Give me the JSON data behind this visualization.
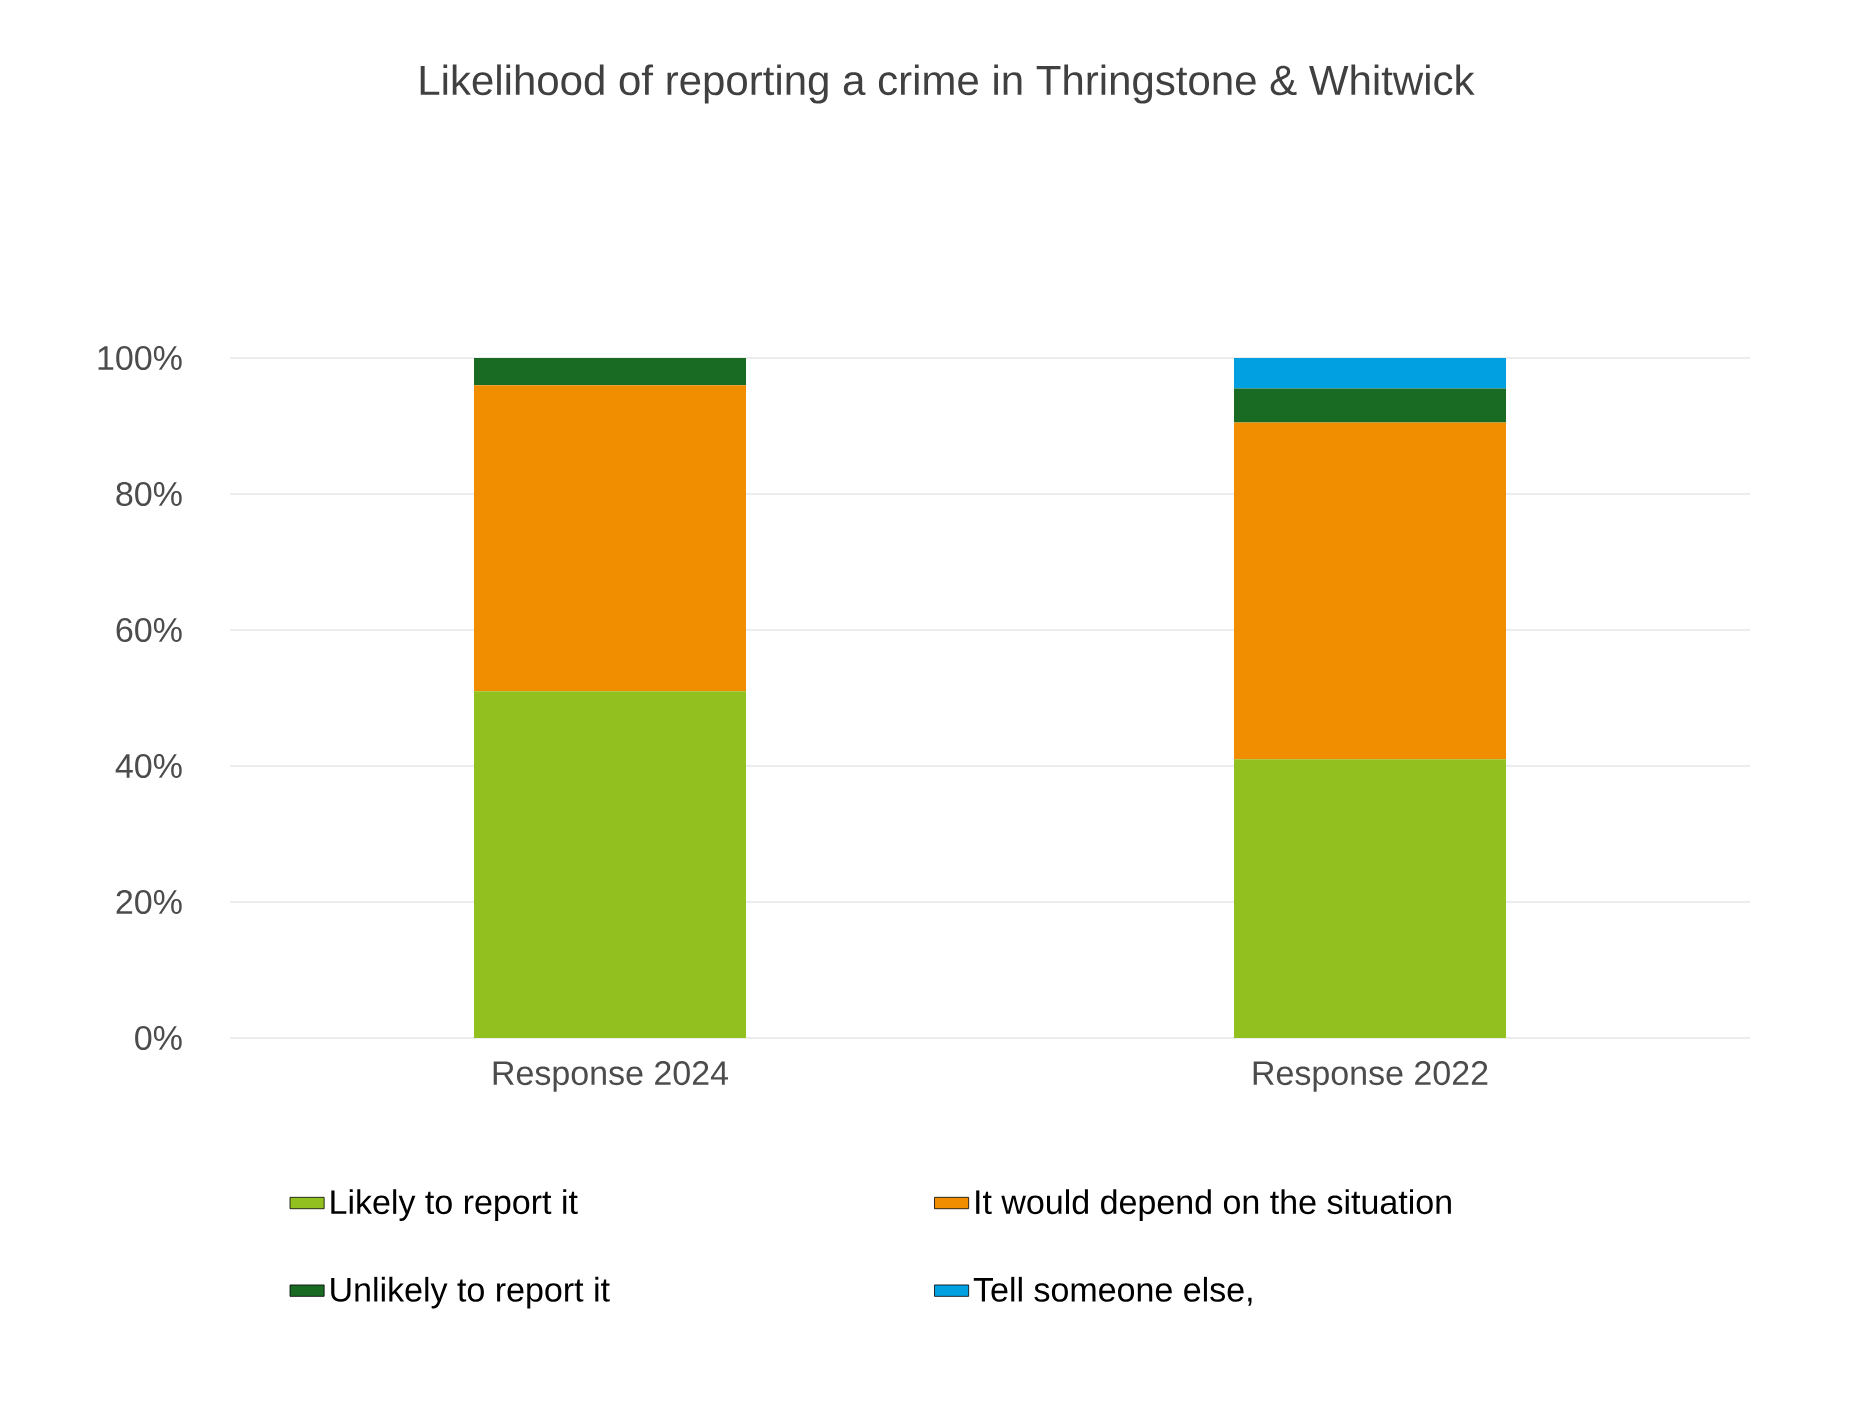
{
  "chart_data": {
    "type": "bar",
    "stacked": true,
    "title": "Likelihood of reporting a crime in Thringstone & Whitwick",
    "categories": [
      "Response 2024",
      "Response 2022"
    ],
    "series": [
      {
        "name": "Likely to report it",
        "color": "#92c01f",
        "values": [
          51,
          41
        ]
      },
      {
        "name": "It would depend on the situation",
        "color": "#f18e00",
        "values": [
          45,
          49.5
        ]
      },
      {
        "name": "Unlikely to report it",
        "color": "#196b24",
        "values": [
          4,
          5
        ]
      },
      {
        "name": "Tell someone else,",
        "color": "#00a0e1",
        "values": [
          null,
          4.5
        ]
      }
    ],
    "ylim": [
      0,
      100
    ],
    "yticks": [
      {
        "value": 0,
        "label": "0%"
      },
      {
        "value": 20,
        "label": "20%"
      },
      {
        "value": 40,
        "label": "40%"
      },
      {
        "value": 60,
        "label": "60%"
      },
      {
        "value": 80,
        "label": "80%"
      },
      {
        "value": 100,
        "label": "100%"
      }
    ],
    "grid": "y",
    "legend": "bottom"
  }
}
